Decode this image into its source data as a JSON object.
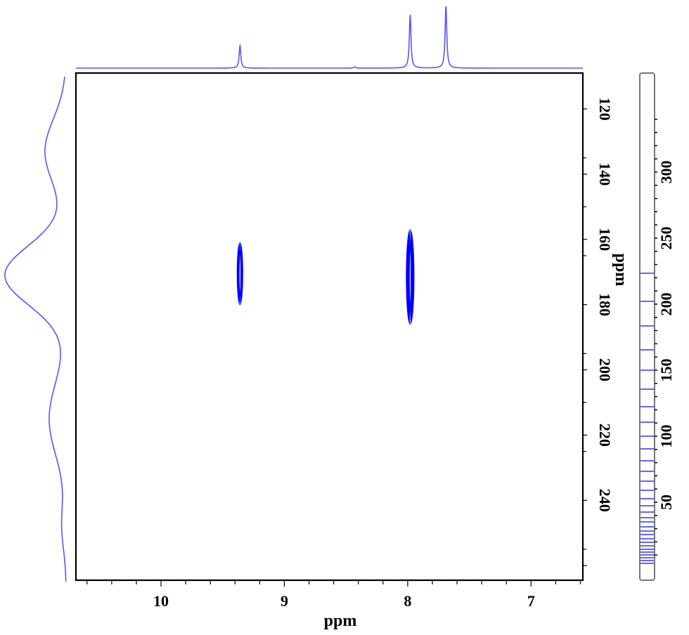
{
  "chart_data": {
    "type": "contour",
    "title": "",
    "description": "2D NMR contour plot (1H–13C correlation) with 1D projections on top (F2) and left (F1), and a contour-level colour bar on the right",
    "xlabel": "ppm",
    "ylabel": "ppm",
    "x_axis": {
      "label": "ppm",
      "reversed": true,
      "range": [
        10.69,
        6.58
      ],
      "major_ticks": [
        10,
        9,
        8,
        7
      ],
      "tick_labels": [
        "10",
        "9",
        "8",
        "7"
      ],
      "minor_tick_step": 0.2
    },
    "y_axis": {
      "label": "ppm",
      "position": "right",
      "reversed": true,
      "range": [
        109,
        264.5
      ],
      "major_ticks": [
        120,
        140,
        160,
        180,
        200,
        220,
        240
      ],
      "tick_labels": [
        "120",
        "140",
        "160",
        "180",
        "200",
        "220",
        "240"
      ],
      "minor_tick_step": 5
    },
    "colorbar": {
      "position": "right",
      "tick_labels": [
        "300",
        "250",
        "200",
        "150",
        "100",
        "50"
      ],
      "ticks": [
        300,
        250,
        200,
        150,
        100,
        50
      ],
      "level_color": "#3333ff",
      "level_count": 31
    },
    "cross_peaks": [
      {
        "x_ppm": 9.36,
        "y_ppm": 170.5,
        "y_extent": [
          161,
          180
        ],
        "intensity": "medium"
      },
      {
        "x_ppm": 7.98,
        "y_ppm": 171.5,
        "y_extent": [
          157,
          186
        ],
        "intensity": "strong"
      }
    ],
    "top_projection": {
      "peaks": [
        {
          "ppm": 9.36,
          "relative_height": 0.36
        },
        {
          "ppm": 8.43,
          "relative_height": 0.02
        },
        {
          "ppm": 7.98,
          "relative_height": 0.85
        },
        {
          "ppm": 7.69,
          "relative_height": 1.0
        }
      ]
    },
    "left_projection": {
      "peaks": [
        {
          "ppm": 171,
          "relative_height": 1.0
        }
      ],
      "shoulders_ppm": [
        133,
        215
      ]
    },
    "colors": {
      "data": "#0000ff",
      "projection": "#5555ff",
      "axis": "#000000",
      "background": "#ffffff"
    },
    "grid": false,
    "legend": "none"
  }
}
